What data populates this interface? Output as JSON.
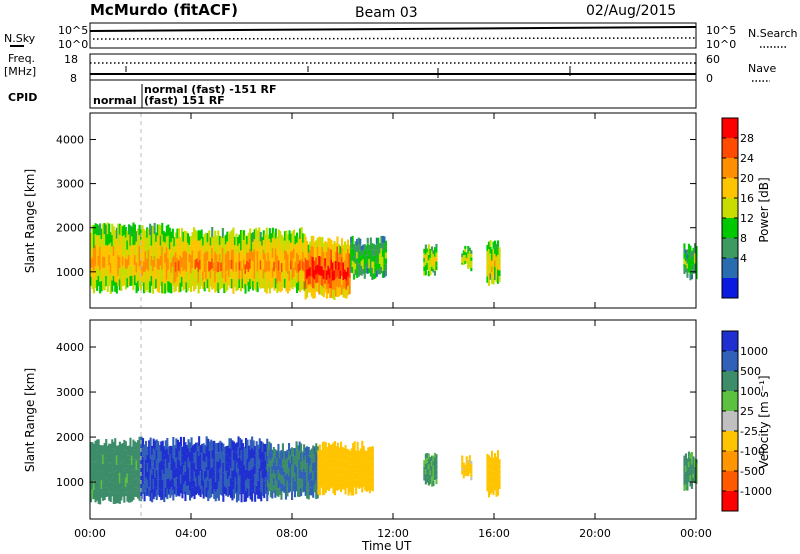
{
  "header": {
    "station": "McMurdo (fitACF)",
    "beam": "Beam 03",
    "date": "02/Aug/2015"
  },
  "summary_panels": {
    "nsky_label": "N.Sky",
    "nsky_ticks": [
      "10^5",
      "10^0"
    ],
    "nsearch_label": "N.Search",
    "nsearch_ticks": [
      "10^5",
      "10^0"
    ],
    "freq_label": "Freq.",
    "freq_unit": "[MHz]",
    "freq_ticks": [
      "18",
      "8"
    ],
    "nave_label": "Nave",
    "nave_ticks": [
      "60",
      "0"
    ],
    "cpid_label": "CPID",
    "cpid_entries": [
      "normal",
      "normal (fast) -151 RF",
      "(fast) 151 RF"
    ]
  },
  "colorbars": {
    "power": {
      "label": "Power [dB]",
      "ticks": [
        "28",
        "24",
        "20",
        "16",
        "12",
        "8",
        "4"
      ],
      "colors": [
        "#ff0000",
        "#ff4a00",
        "#ff8f00",
        "#ffc400",
        "#c8dc00",
        "#00c800",
        "#3d9a60",
        "#2a6cb0",
        "#0b1ae0"
      ]
    },
    "velocity": {
      "label": "Velocity [m s⁻¹]",
      "ticks": [
        "1000",
        "500",
        "100",
        "25",
        "-25",
        "-100",
        "-500",
        "-1000"
      ],
      "colors": [
        "#2030d0",
        "#3060b8",
        "#3d8c6a",
        "#5cc040",
        "#c0c0c0",
        "#ffc400",
        "#ff9600",
        "#ff5a00",
        "#ff0000"
      ]
    }
  },
  "chart_data": [
    {
      "type": "heatmap",
      "title": "Power",
      "ylabel": "Slant Range [km]",
      "xlabel": "",
      "yticks": [
        1000,
        2000,
        3000,
        4000
      ],
      "ylim": [
        180,
        4600
      ],
      "xlim": [
        0,
        24
      ],
      "x_tick_labels": [
        "00:00",
        "04:00",
        "08:00",
        "12:00",
        "16:00",
        "20:00",
        "00:00"
      ],
      "regions": [
        {
          "t0": 0.0,
          "t1": 3.3,
          "r0": 600,
          "r1": 2000,
          "value": 18
        },
        {
          "t0": 3.3,
          "t1": 8.5,
          "r0": 600,
          "r1": 1900,
          "value": 20
        },
        {
          "t0": 8.5,
          "t1": 10.3,
          "r0": 450,
          "r1": 1700,
          "value": 26
        },
        {
          "t0": 10.3,
          "t1": 11.7,
          "r0": 900,
          "r1": 1700,
          "value": 10
        },
        {
          "t0": 13.2,
          "t1": 13.7,
          "r0": 950,
          "r1": 1550,
          "value": 14
        },
        {
          "t0": 14.7,
          "t1": 15.1,
          "r0": 1100,
          "r1": 1500,
          "value": 14
        },
        {
          "t0": 15.7,
          "t1": 16.2,
          "r0": 750,
          "r1": 1600,
          "value": 16
        },
        {
          "t0": 23.5,
          "t1": 24.0,
          "r0": 900,
          "r1": 1600,
          "value": 10
        }
      ]
    },
    {
      "type": "heatmap",
      "title": "Velocity",
      "ylabel": "Slant Range [km]",
      "xlabel": "Time UT",
      "yticks": [
        1000,
        2000,
        3000,
        4000
      ],
      "ylim": [
        180,
        4600
      ],
      "xlim": [
        0,
        24
      ],
      "x_tick_labels": [
        "00:00",
        "04:00",
        "08:00",
        "12:00",
        "16:00",
        "20:00",
        "00:00"
      ],
      "regions": [
        {
          "t0": 0.0,
          "t1": 2.0,
          "r0": 600,
          "r1": 1900,
          "value": 150
        },
        {
          "t0": 2.0,
          "t1": 7.0,
          "r0": 650,
          "r1": 1900,
          "value": 800
        },
        {
          "t0": 7.0,
          "t1": 9.0,
          "r0": 700,
          "r1": 1800,
          "value": 300
        },
        {
          "t0": 9.0,
          "t1": 11.2,
          "r0": 800,
          "r1": 1800,
          "value": -200
        },
        {
          "t0": 13.2,
          "t1": 13.7,
          "r0": 950,
          "r1": 1550,
          "value": 100
        },
        {
          "t0": 14.7,
          "t1": 15.1,
          "r0": 1100,
          "r1": 1500,
          "value": -150
        },
        {
          "t0": 15.7,
          "t1": 16.2,
          "r0": 750,
          "r1": 1600,
          "value": -200
        },
        {
          "t0": 23.5,
          "t1": 24.0,
          "r0": 900,
          "r1": 1600,
          "value": 100
        }
      ]
    }
  ]
}
